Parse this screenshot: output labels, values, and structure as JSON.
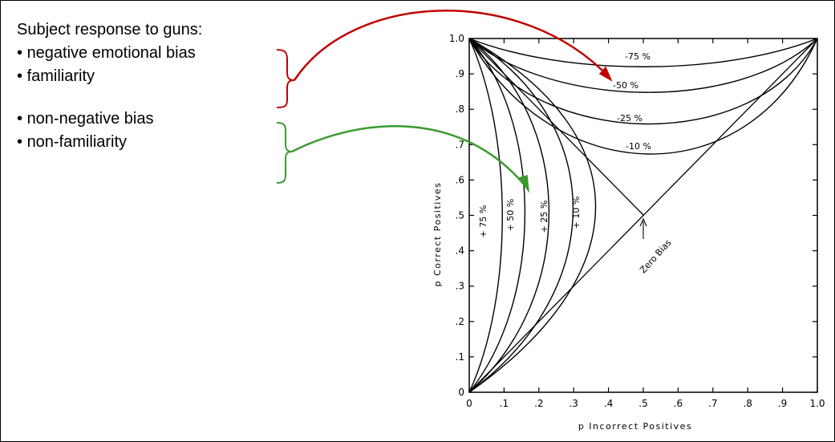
{
  "text_panel": {
    "title": "Subject response to guns:",
    "group_red": [
      "negative emotional bias",
      "familiarity"
    ],
    "group_green": [
      "non-negative bias",
      "non-familiarity"
    ]
  },
  "colors": {
    "red": "#c00000",
    "green": "#3a9a2e",
    "ink": "#000000"
  },
  "chart": {
    "xlabel": "p  Incorrect  Positives",
    "ylabel": "p  Correct  Positives",
    "x_ticks": [
      "0",
      ".1",
      ".2",
      ".3",
      ".4",
      ".5",
      ".6",
      ".7",
      ".8",
      ".9",
      "1.0"
    ],
    "y_ticks": [
      "0",
      ".1",
      ".2",
      ".3",
      ".4",
      ".5",
      ".6",
      ".7",
      ".8",
      ".9",
      "1.0"
    ],
    "neg_labels": [
      "-75 %",
      "-50 %",
      "-25 %",
      "-10 %"
    ],
    "pos_labels": [
      "+ 75 %",
      "+ 50 %",
      "+ 25 %",
      "+ 10 %"
    ],
    "zero_label": "Zero Bias"
  }
}
